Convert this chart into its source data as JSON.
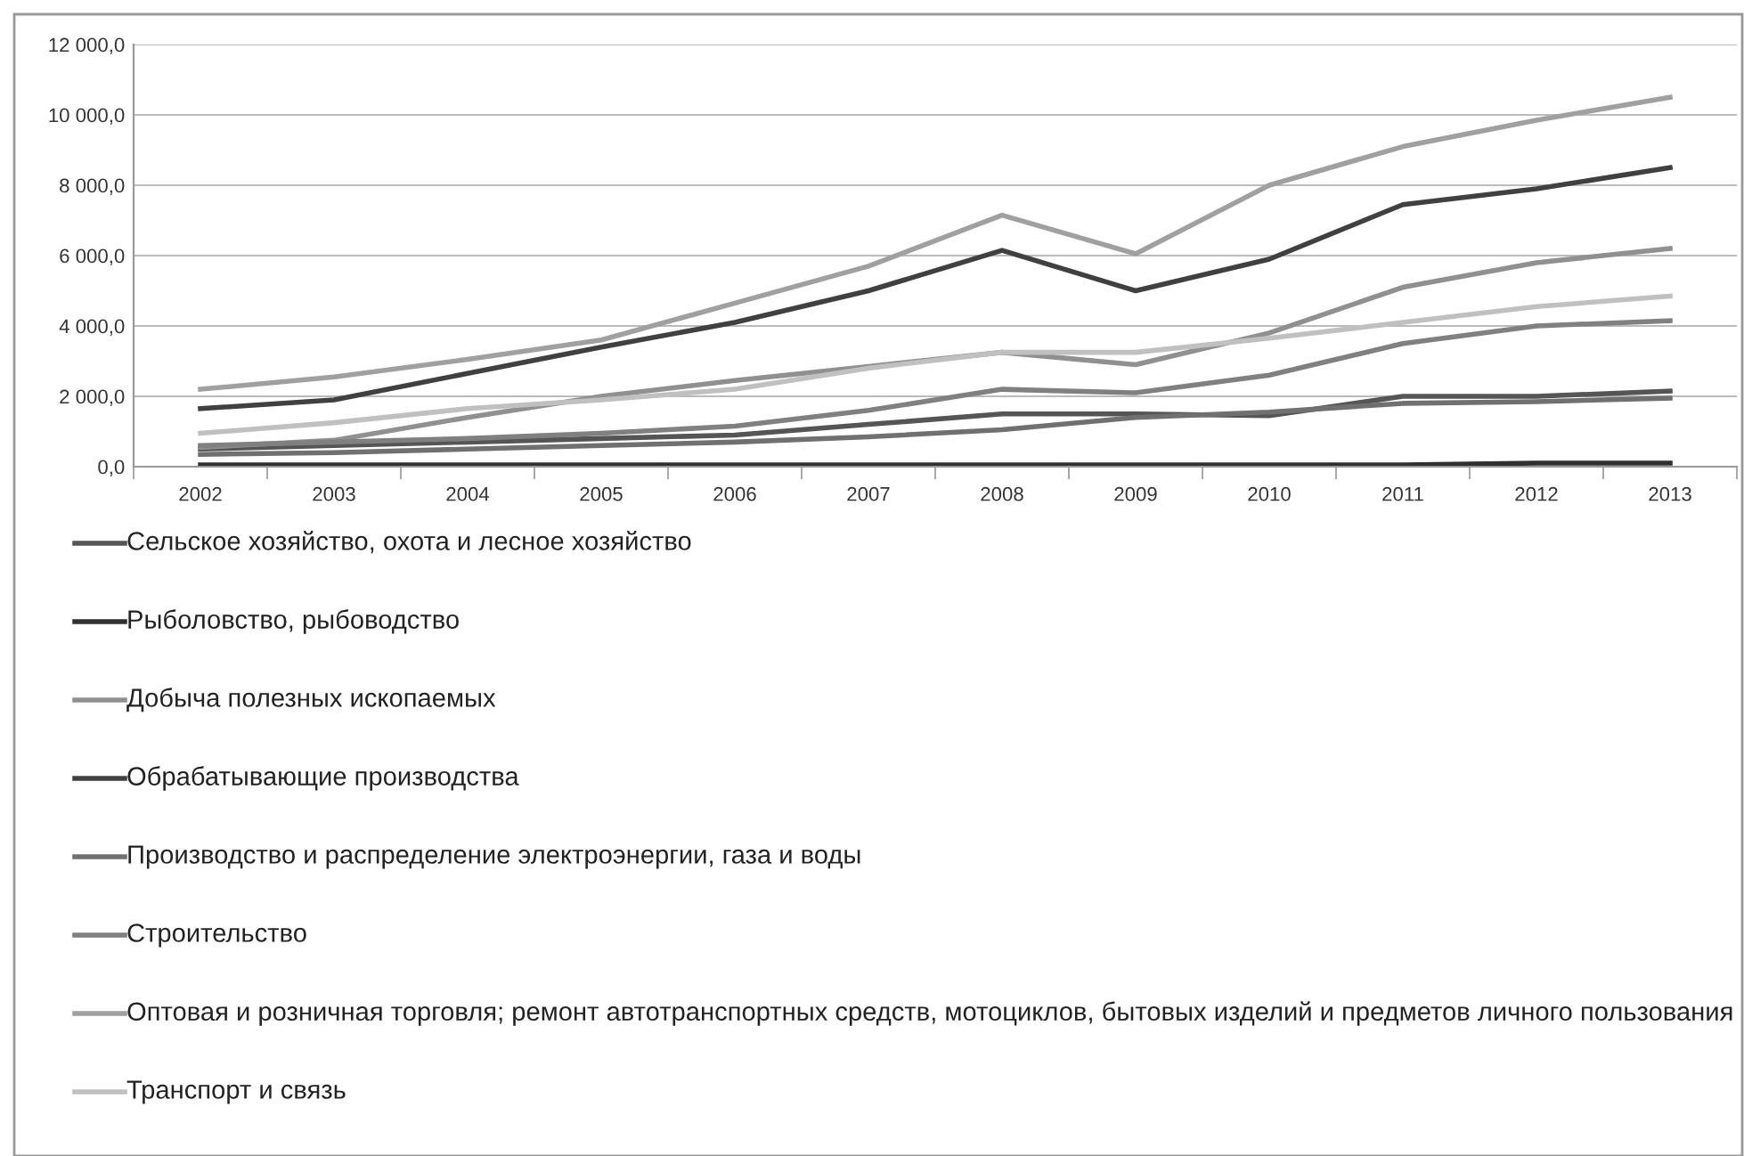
{
  "chart_data": {
    "type": "line",
    "categories": [
      "2002",
      "2003",
      "2004",
      "2005",
      "2006",
      "2007",
      "2008",
      "2009",
      "2010",
      "2011",
      "2012",
      "2013"
    ],
    "series": [
      {
        "name": "Сельское хозяйство, охота и лесное хозяйство",
        "color": "#555555",
        "values": [
          500,
          600,
          700,
          800,
          900,
          1200,
          1500,
          1500,
          1450,
          2000,
          2000,
          2150
        ]
      },
      {
        "name": "Рыболовство, рыбоводство",
        "color": "#303030",
        "values": [
          50,
          50,
          50,
          50,
          50,
          50,
          50,
          50,
          50,
          50,
          100,
          100
        ]
      },
      {
        "name": "Добыча полезных ископаемых",
        "color": "#909090",
        "values": [
          550,
          750,
          1400,
          2000,
          2450,
          2850,
          3250,
          2900,
          3800,
          5100,
          5800,
          6200
        ]
      },
      {
        "name": "Обрабатывающие производства",
        "color": "#404040",
        "values": [
          1650,
          1900,
          2650,
          3400,
          4100,
          5000,
          6150,
          5000,
          5900,
          7450,
          7900,
          8500
        ]
      },
      {
        "name": "Производство и распределение электроэнергии, газа и воды",
        "color": "#707070",
        "values": [
          350,
          400,
          500,
          600,
          700,
          850,
          1050,
          1400,
          1550,
          1800,
          1850,
          1950
        ]
      },
      {
        "name": "Строительство",
        "color": "#808080",
        "values": [
          600,
          700,
          800,
          950,
          1150,
          1600,
          2200,
          2100,
          2600,
          3500,
          4000,
          4150
        ]
      },
      {
        "name": "Оптовая и розничная торговля; ремонт автотранспортных средств, мотоциклов, бытовых изделий и предметов личного пользования",
        "color": "#a0a0a0",
        "values": [
          2200,
          2550,
          3050,
          3600,
          4650,
          5700,
          7150,
          6050,
          8000,
          9100,
          9850,
          10500
        ]
      },
      {
        "name": "Транспорт и связь",
        "color": "#c0c0c0",
        "values": [
          950,
          1250,
          1650,
          1900,
          2200,
          2800,
          3250,
          3250,
          3650,
          4100,
          4550,
          4850
        ]
      }
    ],
    "ylim": [
      0,
      12000
    ],
    "yticks": [
      {
        "value": 0,
        "label": "0,0"
      },
      {
        "value": 2000,
        "label": "2 000,0"
      },
      {
        "value": 4000,
        "label": "4 000,0"
      },
      {
        "value": 6000,
        "label": "6 000,0"
      },
      {
        "value": 8000,
        "label": "8 000,0"
      },
      {
        "value": 10000,
        "label": "10 000,0"
      },
      {
        "value": 12000,
        "label": "12 000,0"
      }
    ],
    "grid": "y",
    "legend": "bottom",
    "marker": "none",
    "line_style": "solid"
  }
}
